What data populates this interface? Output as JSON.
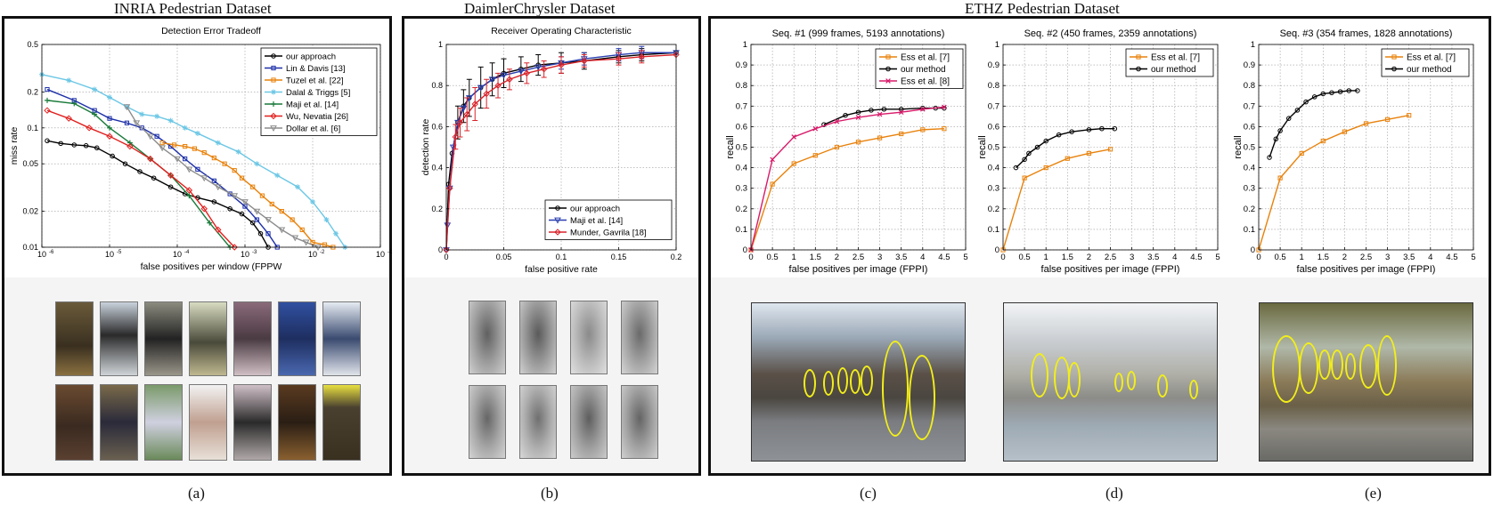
{
  "figure": {
    "panel_titles": [
      "INRIA Pedestrian Dataset",
      "DaimlerChrysler Dataset",
      "ETHZ Pedestrian Dataset"
    ],
    "sub_labels": [
      "(a)",
      "(b)",
      "(c)",
      "(d)",
      "(e)"
    ]
  },
  "chart_data": [
    {
      "type": "line",
      "title": "Detection Error Tradeoff",
      "xlabel": "false positives per window (FPPW",
      "ylabel": "miss rate",
      "xscale": "log",
      "yscale": "log",
      "xlim": [
        1e-06,
        0.1
      ],
      "ylim": [
        0.01,
        0.5
      ],
      "x_ticks": [
        1e-06,
        1e-05,
        0.0001,
        0.001,
        0.01,
        0.1
      ],
      "x_tick_labels": [
        "10",
        "10",
        "10",
        "10",
        "10",
        "10"
      ],
      "x_tick_exponents": [
        "-6",
        "-5",
        "-4",
        "-3",
        "-2",
        "-1"
      ],
      "y_ticks": [
        0.01,
        0.02,
        0.05,
        0.1,
        0.2,
        0.5
      ],
      "y_tick_labels": [
        "0.01",
        "0.02",
        "0.05",
        "0.1",
        "0.2",
        "0.5"
      ],
      "grid": true,
      "legend_position": "top-right",
      "series": [
        {
          "name": "our approach",
          "color": "#000000",
          "marker": "circle",
          "x": [
            1.2e-06,
            1.9e-06,
            3e-06,
            4.5e-06,
            6.5e-06,
            1.1e-05,
            1.7e-05,
            2.8e-05,
            4.5e-05,
            8e-05,
            0.00013,
            0.0002,
            0.00035,
            0.0006,
            0.0009,
            0.0013,
            0.0017,
            0.0022
          ],
          "y": [
            0.078,
            0.074,
            0.072,
            0.071,
            0.068,
            0.058,
            0.05,
            0.043,
            0.038,
            0.032,
            0.028,
            0.026,
            0.024,
            0.021,
            0.019,
            0.016,
            0.013,
            0.01
          ]
        },
        {
          "name": "Lin & Davis [13]",
          "color": "#1c2fa8",
          "marker": "square",
          "x": [
            1.2e-06,
            3e-06,
            6e-06,
            1e-05,
            1.8e-05,
            3e-05,
            5e-05,
            8e-05,
            0.00013,
            0.0002,
            0.00035,
            0.0006,
            0.001,
            0.0015,
            0.0022,
            0.003
          ],
          "y": [
            0.21,
            0.17,
            0.14,
            0.12,
            0.11,
            0.1,
            0.085,
            0.07,
            0.055,
            0.045,
            0.036,
            0.028,
            0.022,
            0.017,
            0.013,
            0.01
          ]
        },
        {
          "name": "Tuzel et al. [22]",
          "color": "#e8820c",
          "marker": "square",
          "x": [
            6e-05,
            9e-05,
            0.00013,
            0.00018,
            0.00025,
            0.00035,
            0.0005,
            0.0007,
            0.0009,
            0.0013,
            0.0018,
            0.0025,
            0.0035,
            0.005,
            0.007,
            0.01,
            0.015,
            0.02
          ],
          "y": [
            0.075,
            0.072,
            0.07,
            0.067,
            0.062,
            0.056,
            0.05,
            0.044,
            0.038,
            0.032,
            0.027,
            0.023,
            0.02,
            0.017,
            0.014,
            0.011,
            0.0105,
            0.01
          ]
        },
        {
          "name": "Dalal & Triggs [5]",
          "color": "#6cc7e5",
          "marker": "star",
          "x": [
            1e-06,
            2.5e-06,
            6e-06,
            1e-05,
            1.8e-05,
            3e-05,
            5e-05,
            8e-05,
            0.00013,
            0.0002,
            0.0004,
            0.0008,
            0.0015,
            0.003,
            0.006,
            0.01,
            0.016,
            0.022,
            0.03
          ],
          "y": [
            0.28,
            0.25,
            0.21,
            0.18,
            0.15,
            0.13,
            0.125,
            0.115,
            0.1,
            0.09,
            0.075,
            0.063,
            0.05,
            0.04,
            0.032,
            0.024,
            0.017,
            0.013,
            0.01
          ]
        },
        {
          "name": "Maji et al. [14]",
          "color": "#1a7a3a",
          "marker": "plus",
          "x": [
            1.2e-06,
            3e-06,
            6e-06,
            1e-05,
            2e-05,
            4e-05,
            8e-05,
            0.00015,
            0.0003,
            0.0006
          ],
          "y": [
            0.17,
            0.16,
            0.13,
            0.1,
            0.075,
            0.055,
            0.04,
            0.027,
            0.016,
            0.01
          ]
        },
        {
          "name": "Wu, Nevatia [26]",
          "color": "#e0201e",
          "marker": "diamond",
          "x": [
            1.2e-06,
            2.5e-06,
            5e-06,
            1e-05,
            2e-05,
            4e-05,
            8e-05,
            0.00015,
            0.00025,
            0.0004,
            0.0007
          ],
          "y": [
            0.14,
            0.12,
            0.1,
            0.085,
            0.07,
            0.055,
            0.04,
            0.03,
            0.021,
            0.014,
            0.01
          ]
        },
        {
          "name": "Dollar et al. [6]",
          "color": "#8c8c8c",
          "marker": "triangle",
          "x": [
            1.8e-05,
            2.5e-05,
            4e-05,
            6e-05,
            0.0001,
            0.00015,
            0.00025,
            0.0004,
            0.0007,
            0.001,
            0.0015,
            0.0022,
            0.0035,
            0.0055,
            0.008,
            0.012
          ],
          "y": [
            0.15,
            0.11,
            0.085,
            0.068,
            0.055,
            0.045,
            0.038,
            0.032,
            0.027,
            0.024,
            0.02,
            0.017,
            0.014,
            0.012,
            0.011,
            0.01
          ]
        }
      ]
    },
    {
      "type": "line",
      "title": "Receiver Operating Characteristic",
      "xlabel": "false positive rate",
      "ylabel": "detection rate",
      "xlim": [
        0,
        0.2
      ],
      "ylim": [
        0,
        1
      ],
      "x_ticks": [
        0,
        0.05,
        0.1,
        0.15,
        0.2
      ],
      "x_tick_labels": [
        "0",
        "0.05",
        "0.1",
        "0.15",
        "0.2"
      ],
      "y_ticks": [
        0,
        0.2,
        0.4,
        0.6,
        0.8,
        1
      ],
      "y_tick_labels": [
        "0",
        "0.2",
        "0.4",
        "0.6",
        "0.8",
        "1"
      ],
      "grid": true,
      "legend_position": "bottom-right",
      "series": [
        {
          "name": "our approach",
          "color": "#000000",
          "marker": "circle",
          "x": [
            0,
            0.002,
            0.005,
            0.01,
            0.015,
            0.02,
            0.03,
            0.04,
            0.05,
            0.065,
            0.08,
            0.1,
            0.12,
            0.15,
            0.17,
            0.2
          ],
          "y": [
            0,
            0.32,
            0.47,
            0.62,
            0.7,
            0.74,
            0.79,
            0.83,
            0.86,
            0.88,
            0.9,
            0.91,
            0.92,
            0.94,
            0.95,
            0.96
          ],
          "errors": [
            0,
            0,
            0,
            0.08,
            0.08,
            0.09,
            0.1,
            0.08,
            0.07,
            0.06,
            0.05,
            0.05,
            0.04,
            0.03,
            0.03,
            0
          ]
        },
        {
          "name": "Maji et al. [14]",
          "color": "#2a3fb0",
          "marker": "triangle",
          "x": [
            0,
            0.001,
            0.003,
            0.006,
            0.01,
            0.015,
            0.02,
            0.03,
            0.04,
            0.05,
            0.065,
            0.08,
            0.1,
            0.12,
            0.15,
            0.17,
            0.2
          ],
          "y": [
            0,
            0.12,
            0.3,
            0.5,
            0.62,
            0.69,
            0.74,
            0.79,
            0.83,
            0.85,
            0.87,
            0.89,
            0.91,
            0.93,
            0.95,
            0.96,
            0.96
          ],
          "errors": [
            0,
            0,
            0,
            0,
            0,
            0,
            0,
            0,
            0,
            0,
            0,
            0,
            0.03,
            0.03,
            0.03,
            0.03,
            0
          ]
        },
        {
          "name": "Munder, Gavrila [18]",
          "color": "#d8232a",
          "marker": "diamond",
          "x": [
            0,
            0.003,
            0.008,
            0.012,
            0.018,
            0.025,
            0.035,
            0.045,
            0.055,
            0.07,
            0.085,
            0.1,
            0.12,
            0.15,
            0.17,
            0.2
          ],
          "y": [
            0,
            0.3,
            0.55,
            0.62,
            0.66,
            0.71,
            0.76,
            0.8,
            0.83,
            0.86,
            0.88,
            0.9,
            0.92,
            0.93,
            0.94,
            0.95
          ],
          "errors": [
            0,
            0,
            0.06,
            0.07,
            0.08,
            0.08,
            0.07,
            0.06,
            0.05,
            0.05,
            0.04,
            0.04,
            0.03,
            0.03,
            0.03,
            0
          ]
        }
      ]
    },
    {
      "type": "line",
      "title": "Seq. #1 (999 frames, 5193 annotations)",
      "xlabel": "false positives per image (FPPI)",
      "ylabel": "recall",
      "xlim": [
        0,
        5
      ],
      "ylim": [
        0,
        1
      ],
      "x_ticks": [
        0,
        0.5,
        1,
        1.5,
        2,
        2.5,
        3,
        3.5,
        4,
        4.5,
        5
      ],
      "x_tick_labels": [
        "0",
        "0.5",
        "1",
        "1.5",
        "2",
        "2.5",
        "3",
        "3.5",
        "4",
        "4.5",
        "5"
      ],
      "y_ticks": [
        0,
        0.1,
        0.2,
        0.3,
        0.4,
        0.5,
        0.6,
        0.7,
        0.8,
        0.9,
        1
      ],
      "y_tick_labels": [
        "0",
        "0.1",
        "0.2",
        "0.3",
        "0.4",
        "0.5",
        "0.6",
        "0.7",
        "0.8",
        "0.9",
        "1"
      ],
      "grid": true,
      "legend_position": "top-right",
      "series": [
        {
          "name": "Ess et al. [7]",
          "color": "#e8820c",
          "marker": "square",
          "x": [
            0,
            0.5,
            1,
            1.5,
            2,
            2.5,
            3,
            3.5,
            4,
            4.5
          ],
          "y": [
            0,
            0.32,
            0.42,
            0.46,
            0.5,
            0.525,
            0.545,
            0.565,
            0.585,
            0.59
          ]
        },
        {
          "name": "our method",
          "color": "#000000",
          "marker": "circle",
          "x": [
            1.7,
            2.2,
            2.5,
            2.8,
            3.1,
            3.5,
            4,
            4.3,
            4.5
          ],
          "y": [
            0.61,
            0.655,
            0.67,
            0.68,
            0.685,
            0.685,
            0.69,
            0.69,
            0.69
          ]
        },
        {
          "name": "Ess et al. [8]",
          "color": "#d81b6a",
          "marker": "x",
          "x": [
            0,
            0.5,
            1,
            1.5,
            2,
            2.5,
            3,
            3.5,
            4,
            4.5
          ],
          "y": [
            0,
            0.44,
            0.55,
            0.59,
            0.625,
            0.645,
            0.66,
            0.67,
            0.685,
            0.695
          ]
        }
      ]
    },
    {
      "type": "line",
      "title": "Seq. #2 (450 frames, 2359 annotations)",
      "xlabel": "false positives per image (FPPI)",
      "ylabel": "recall",
      "xlim": [
        0,
        5
      ],
      "ylim": [
        0,
        1
      ],
      "x_ticks": [
        0,
        0.5,
        1,
        1.5,
        2,
        2.5,
        3,
        3.5,
        4,
        4.5,
        5
      ],
      "x_tick_labels": [
        "0",
        "0.5",
        "1",
        "1.5",
        "2",
        "2.5",
        "3",
        "3.5",
        "4",
        "4.5",
        "5"
      ],
      "y_ticks": [
        0,
        0.1,
        0.2,
        0.3,
        0.4,
        0.5,
        0.6,
        0.7,
        0.8,
        0.9,
        1
      ],
      "y_tick_labels": [
        "0",
        "0.1",
        "0.2",
        "0.3",
        "0.4",
        "0.5",
        "0.6",
        "0.7",
        "0.8",
        "0.9",
        "1"
      ],
      "grid": true,
      "legend_position": "top-right",
      "series": [
        {
          "name": "Ess et al. [7]",
          "color": "#e8820c",
          "marker": "square",
          "x": [
            0,
            0.5,
            1,
            1.5,
            2,
            2.5
          ],
          "y": [
            0,
            0.35,
            0.4,
            0.445,
            0.47,
            0.49
          ]
        },
        {
          "name": "our method",
          "color": "#000000",
          "marker": "circle",
          "x": [
            0.3,
            0.5,
            0.6,
            0.8,
            1,
            1.3,
            1.6,
            2,
            2.3,
            2.6
          ],
          "y": [
            0.4,
            0.44,
            0.47,
            0.5,
            0.53,
            0.56,
            0.575,
            0.585,
            0.59,
            0.59
          ]
        }
      ]
    },
    {
      "type": "line",
      "title": "Seq. #3 (354 frames, 1828 annotations)",
      "xlabel": "false positives per image (FPPI)",
      "ylabel": "recall",
      "xlim": [
        0,
        5
      ],
      "ylim": [
        0,
        1
      ],
      "x_ticks": [
        0,
        0.5,
        1,
        1.5,
        2,
        2.5,
        3,
        3.5,
        4,
        4.5,
        5
      ],
      "x_tick_labels": [
        "0",
        "0.5",
        "1",
        "1.5",
        "2",
        "2.5",
        "3",
        "3.5",
        "4",
        "4.5",
        "5"
      ],
      "y_ticks": [
        0,
        0.1,
        0.2,
        0.3,
        0.4,
        0.5,
        0.6,
        0.7,
        0.8,
        0.9,
        1
      ],
      "y_tick_labels": [
        "0",
        "0.1",
        "0.2",
        "0.3",
        "0.4",
        "0.5",
        "0.6",
        "0.7",
        "0.8",
        "0.9",
        "1"
      ],
      "grid": true,
      "legend_position": "top-right",
      "series": [
        {
          "name": "Ess et al. [7]",
          "color": "#e8820c",
          "marker": "square",
          "x": [
            0,
            0.5,
            1,
            1.5,
            2,
            2.5,
            3,
            3.5
          ],
          "y": [
            0,
            0.35,
            0.47,
            0.53,
            0.575,
            0.615,
            0.635,
            0.655
          ]
        },
        {
          "name": "our method",
          "color": "#000000",
          "marker": "circle",
          "x": [
            0.25,
            0.4,
            0.5,
            0.7,
            0.9,
            1.1,
            1.3,
            1.5,
            1.7,
            1.9,
            2.1,
            2.3
          ],
          "y": [
            0.45,
            0.54,
            0.58,
            0.64,
            0.68,
            0.72,
            0.745,
            0.76,
            0.765,
            0.77,
            0.775,
            0.775
          ]
        }
      ]
    }
  ]
}
